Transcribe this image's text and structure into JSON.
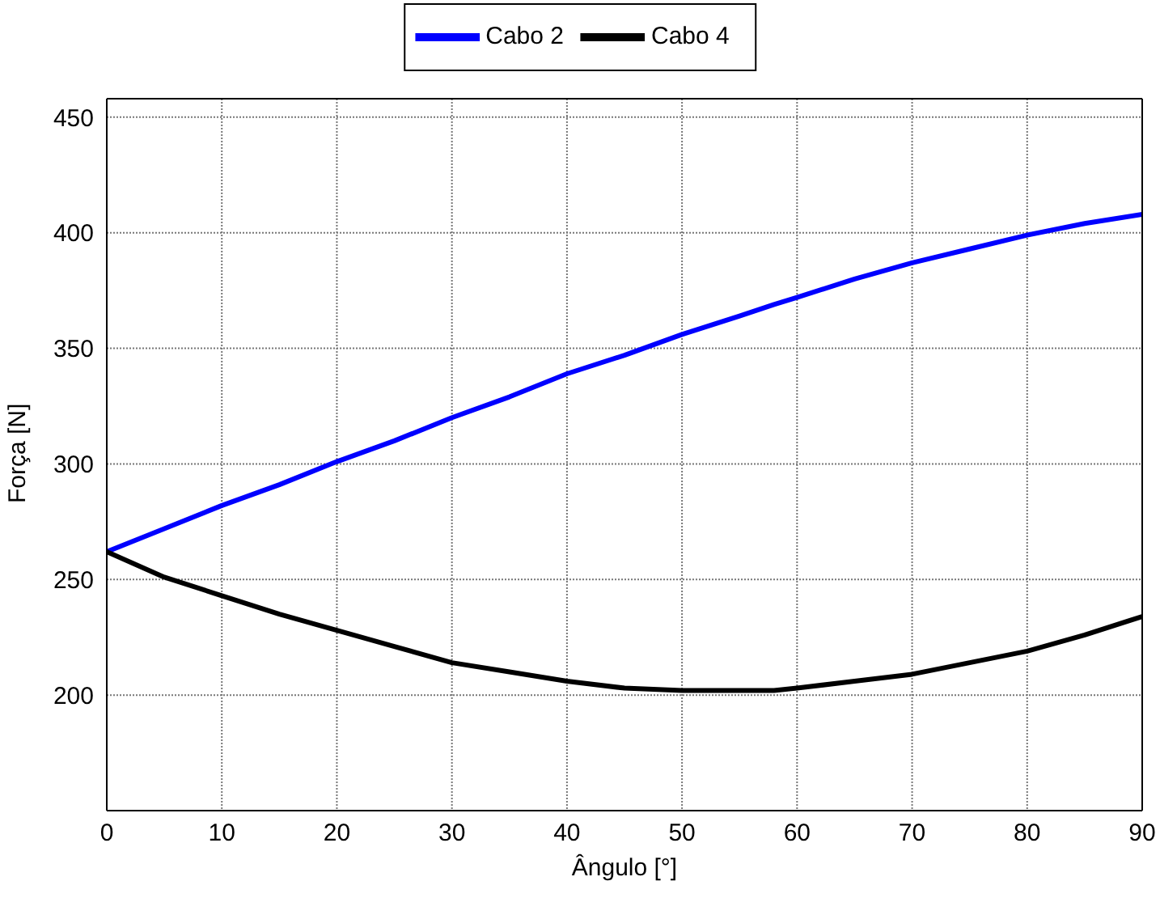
{
  "chart_data": {
    "type": "line",
    "xlabel": "Ângulo [°]",
    "ylabel": "Força [N]",
    "xlim": [
      0,
      90
    ],
    "xticks": [
      0,
      10,
      20,
      30,
      40,
      50,
      60,
      70,
      80,
      90
    ],
    "ylim": [
      150,
      458
    ],
    "yticks": [
      200,
      250,
      300,
      350,
      400,
      450
    ],
    "grid": true,
    "legend": "top",
    "marker": "none",
    "line_style": "solid",
    "x": [
      0,
      5,
      10,
      15,
      20,
      25,
      30,
      35,
      40,
      45,
      50,
      55,
      58,
      60,
      65,
      70,
      75,
      80,
      85,
      90
    ],
    "series": [
      {
        "name": "Cabo 2",
        "color": "#0000ff",
        "values": [
          262,
          272,
          282,
          291,
          301,
          310,
          320,
          329,
          339,
          347,
          356,
          364,
          369,
          372,
          380,
          387,
          393,
          399,
          404,
          408
        ]
      },
      {
        "name": "Cabo 4",
        "color": "#000000",
        "values": [
          262,
          251,
          243,
          235,
          228,
          221,
          214,
          210,
          206,
          203,
          202,
          202,
          202,
          203,
          206,
          209,
          214,
          219,
          226,
          234
        ]
      }
    ]
  }
}
